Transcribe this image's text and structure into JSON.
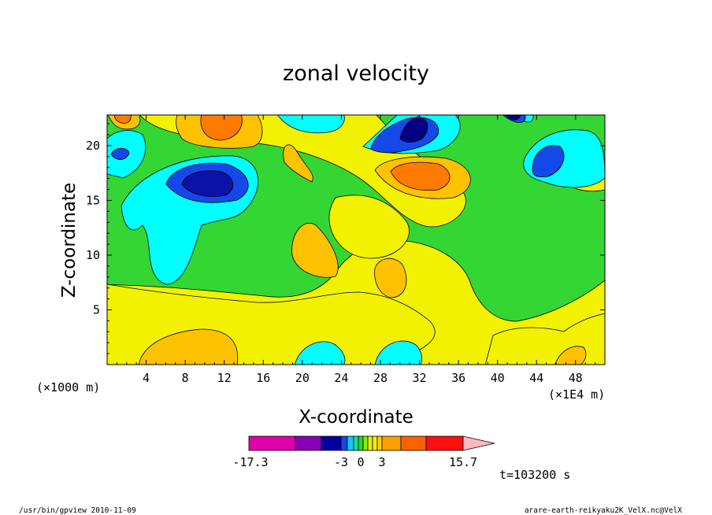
{
  "chart_data": {
    "type": "contour",
    "title": "zonal velocity",
    "xlabel": "X-coordinate",
    "ylabel": "Z-coordinate",
    "x_unit_left": "(×1000 m)",
    "x_unit_right": "(×1E4 m)",
    "xticks": [
      "4",
      "8",
      "12",
      "16",
      "20",
      "24",
      "28",
      "32",
      "36",
      "40",
      "44",
      "48"
    ],
    "yticks": [
      "5",
      "10",
      "15",
      "20"
    ],
    "xlim": [
      0,
      51
    ],
    "ylim": [
      0,
      22.8
    ],
    "colorbar": {
      "tick_labels": [
        "-17.3",
        "-3",
        "0",
        "3",
        "15.7"
      ],
      "colors": [
        "#e000a8",
        "#8800b4",
        "#0000a0",
        "#1448e8",
        "#18c8f0",
        "#14e0a0",
        "#2ad828",
        "#88ec00",
        "#e6f000",
        "#f0f000",
        "#ffd000",
        "#ffa000",
        "#ff6000",
        "#ff1010",
        "#ff7878",
        "#ffb8c0"
      ]
    },
    "fill_colors": {
      "bg_zero": "#f2f200",
      "green": "#33d633",
      "cyan": "#00ffff",
      "blue": "#1448e8",
      "navy": "#0c12a8",
      "navy2": "#000080",
      "amber": "#ffc200",
      "orange": "#ff7a00"
    },
    "time_label": "t=103200 s"
  },
  "footer": {
    "left": "/usr/bin/gpview   2010-11-09",
    "right": "arare-earth-reikyaku2K_VelX.nc@VelX"
  }
}
